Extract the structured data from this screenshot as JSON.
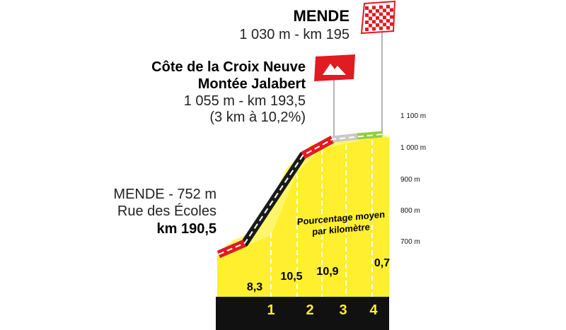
{
  "finish": {
    "name": "MENDE",
    "detail": "1 030 m - km 195"
  },
  "climb": {
    "name_line1": "Côte de la Croix Neuve",
    "name_line2": "Montée Jalabert",
    "detail_line1": "1 055 m - km 193,5",
    "detail_line2": "(3 km à 10,2%)"
  },
  "start": {
    "line1": "MENDE - 752 m",
    "line2": "Rue des Écoles",
    "line3": "km 190,5"
  },
  "altitude_labels": [
    "1 100 m",
    "1 000 m",
    "900 m",
    "800 m",
    "700 m"
  ],
  "gradient_caption": {
    "line1": "Pourcentage moyen",
    "line2": "par kilomètre"
  },
  "gradients": [
    "8,3",
    "10,5",
    "10,9",
    "0,7"
  ],
  "km_markers": [
    "1",
    "2",
    "3",
    "4"
  ],
  "colors": {
    "profile_fill": "#ffef2e",
    "road_dark": "#1a1a1a",
    "road_red": "#e01b22",
    "road_flat_gray": "#c8c8c8",
    "road_finish_green": "#8fcf3c",
    "km_band": "#111111",
    "finish_flag_red": "#e01b22",
    "climb_flag_red": "#e01b22"
  },
  "icons": {
    "finish": "checkered-flag-icon",
    "climb": "mountain-icon"
  }
}
